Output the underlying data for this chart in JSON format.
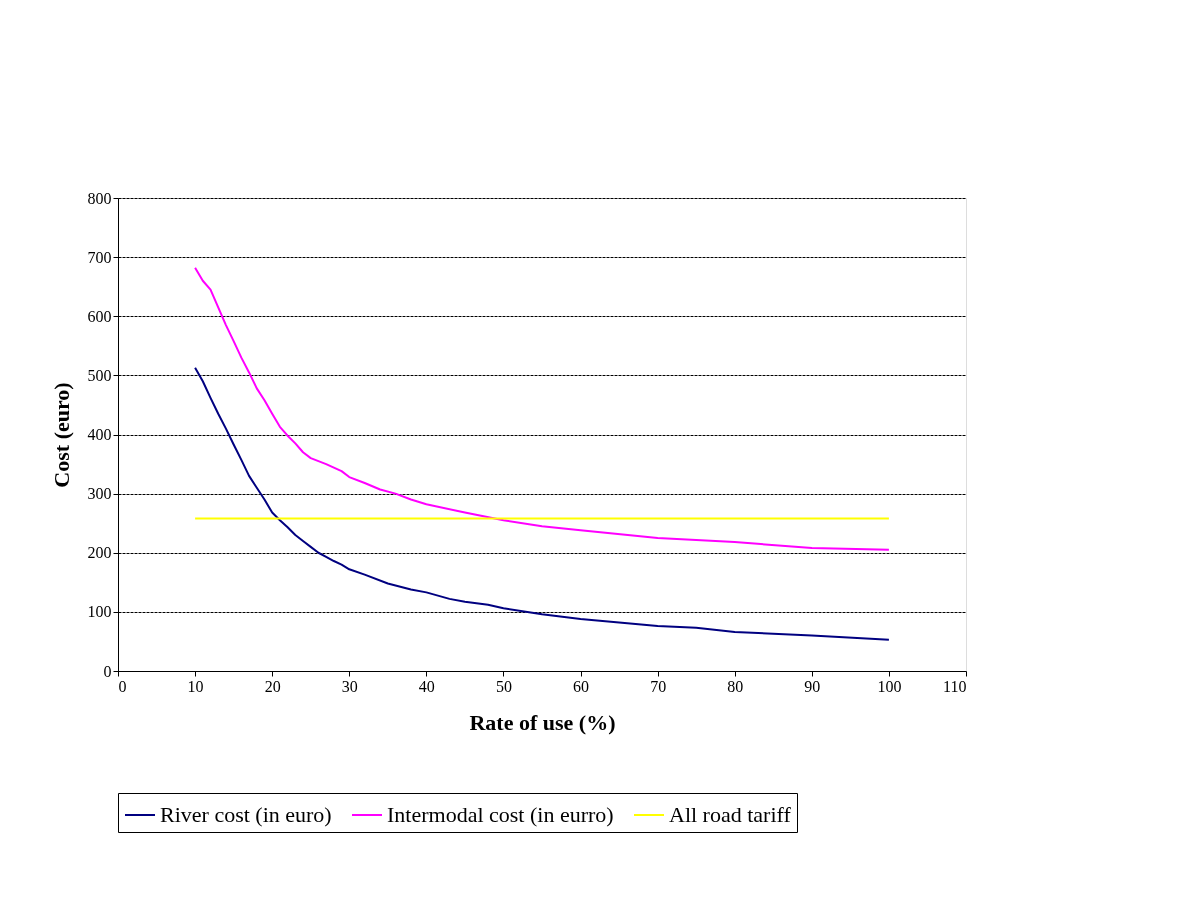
{
  "chart_data": {
    "type": "line",
    "xlabel": "Rate of use (%)",
    "ylabel": "Cost (euro)",
    "xlim": [
      0,
      110
    ],
    "xticks": [
      0,
      10,
      20,
      30,
      40,
      50,
      60,
      70,
      80,
      90,
      100,
      110
    ],
    "ylim": [
      0,
      800
    ],
    "yticks": [
      0,
      100,
      200,
      300,
      400,
      500,
      600,
      700,
      800
    ],
    "grid": "y",
    "legend": "bottom",
    "marker": "none",
    "line_style": "solid",
    "series": [
      {
        "name": "River cost (in euro)",
        "color": "#000080",
        "x": [
          10,
          11,
          12,
          13,
          14,
          15,
          16,
          17,
          18,
          19,
          20,
          21,
          22,
          23,
          24,
          25,
          26,
          27,
          28,
          29,
          30,
          32,
          35,
          38,
          40,
          43,
          45,
          48,
          50,
          55,
          60,
          65,
          70,
          75,
          80,
          90,
          100
        ],
        "values": [
          513,
          490,
          462,
          435,
          410,
          383,
          357,
          330,
          310,
          290,
          268,
          255,
          243,
          230,
          220,
          210,
          200,
          193,
          186,
          180,
          172,
          163,
          148,
          138,
          133,
          122,
          117,
          112,
          106,
          96,
          88,
          82,
          76,
          73,
          66,
          60,
          53
        ]
      },
      {
        "name": "Intermodal cost (in eurro)",
        "color": "#ff00ff",
        "x": [
          10,
          11,
          12,
          13,
          14,
          15,
          16,
          17,
          18,
          19,
          20,
          21,
          22,
          23,
          24,
          25,
          27,
          29,
          30,
          32,
          34,
          36,
          38,
          40,
          45,
          50,
          55,
          60,
          70,
          80,
          90,
          100
        ],
        "values": [
          682,
          660,
          645,
          615,
          585,
          558,
          530,
          505,
          478,
          458,
          435,
          413,
          398,
          385,
          370,
          360,
          350,
          338,
          328,
          318,
          307,
          300,
          290,
          282,
          268,
          255,
          245,
          238,
          225,
          218,
          208,
          205
        ]
      },
      {
        "name": "All road tariff",
        "color": "#ffff00",
        "x": [
          10,
          100
        ],
        "values": [
          258,
          258
        ]
      }
    ]
  }
}
